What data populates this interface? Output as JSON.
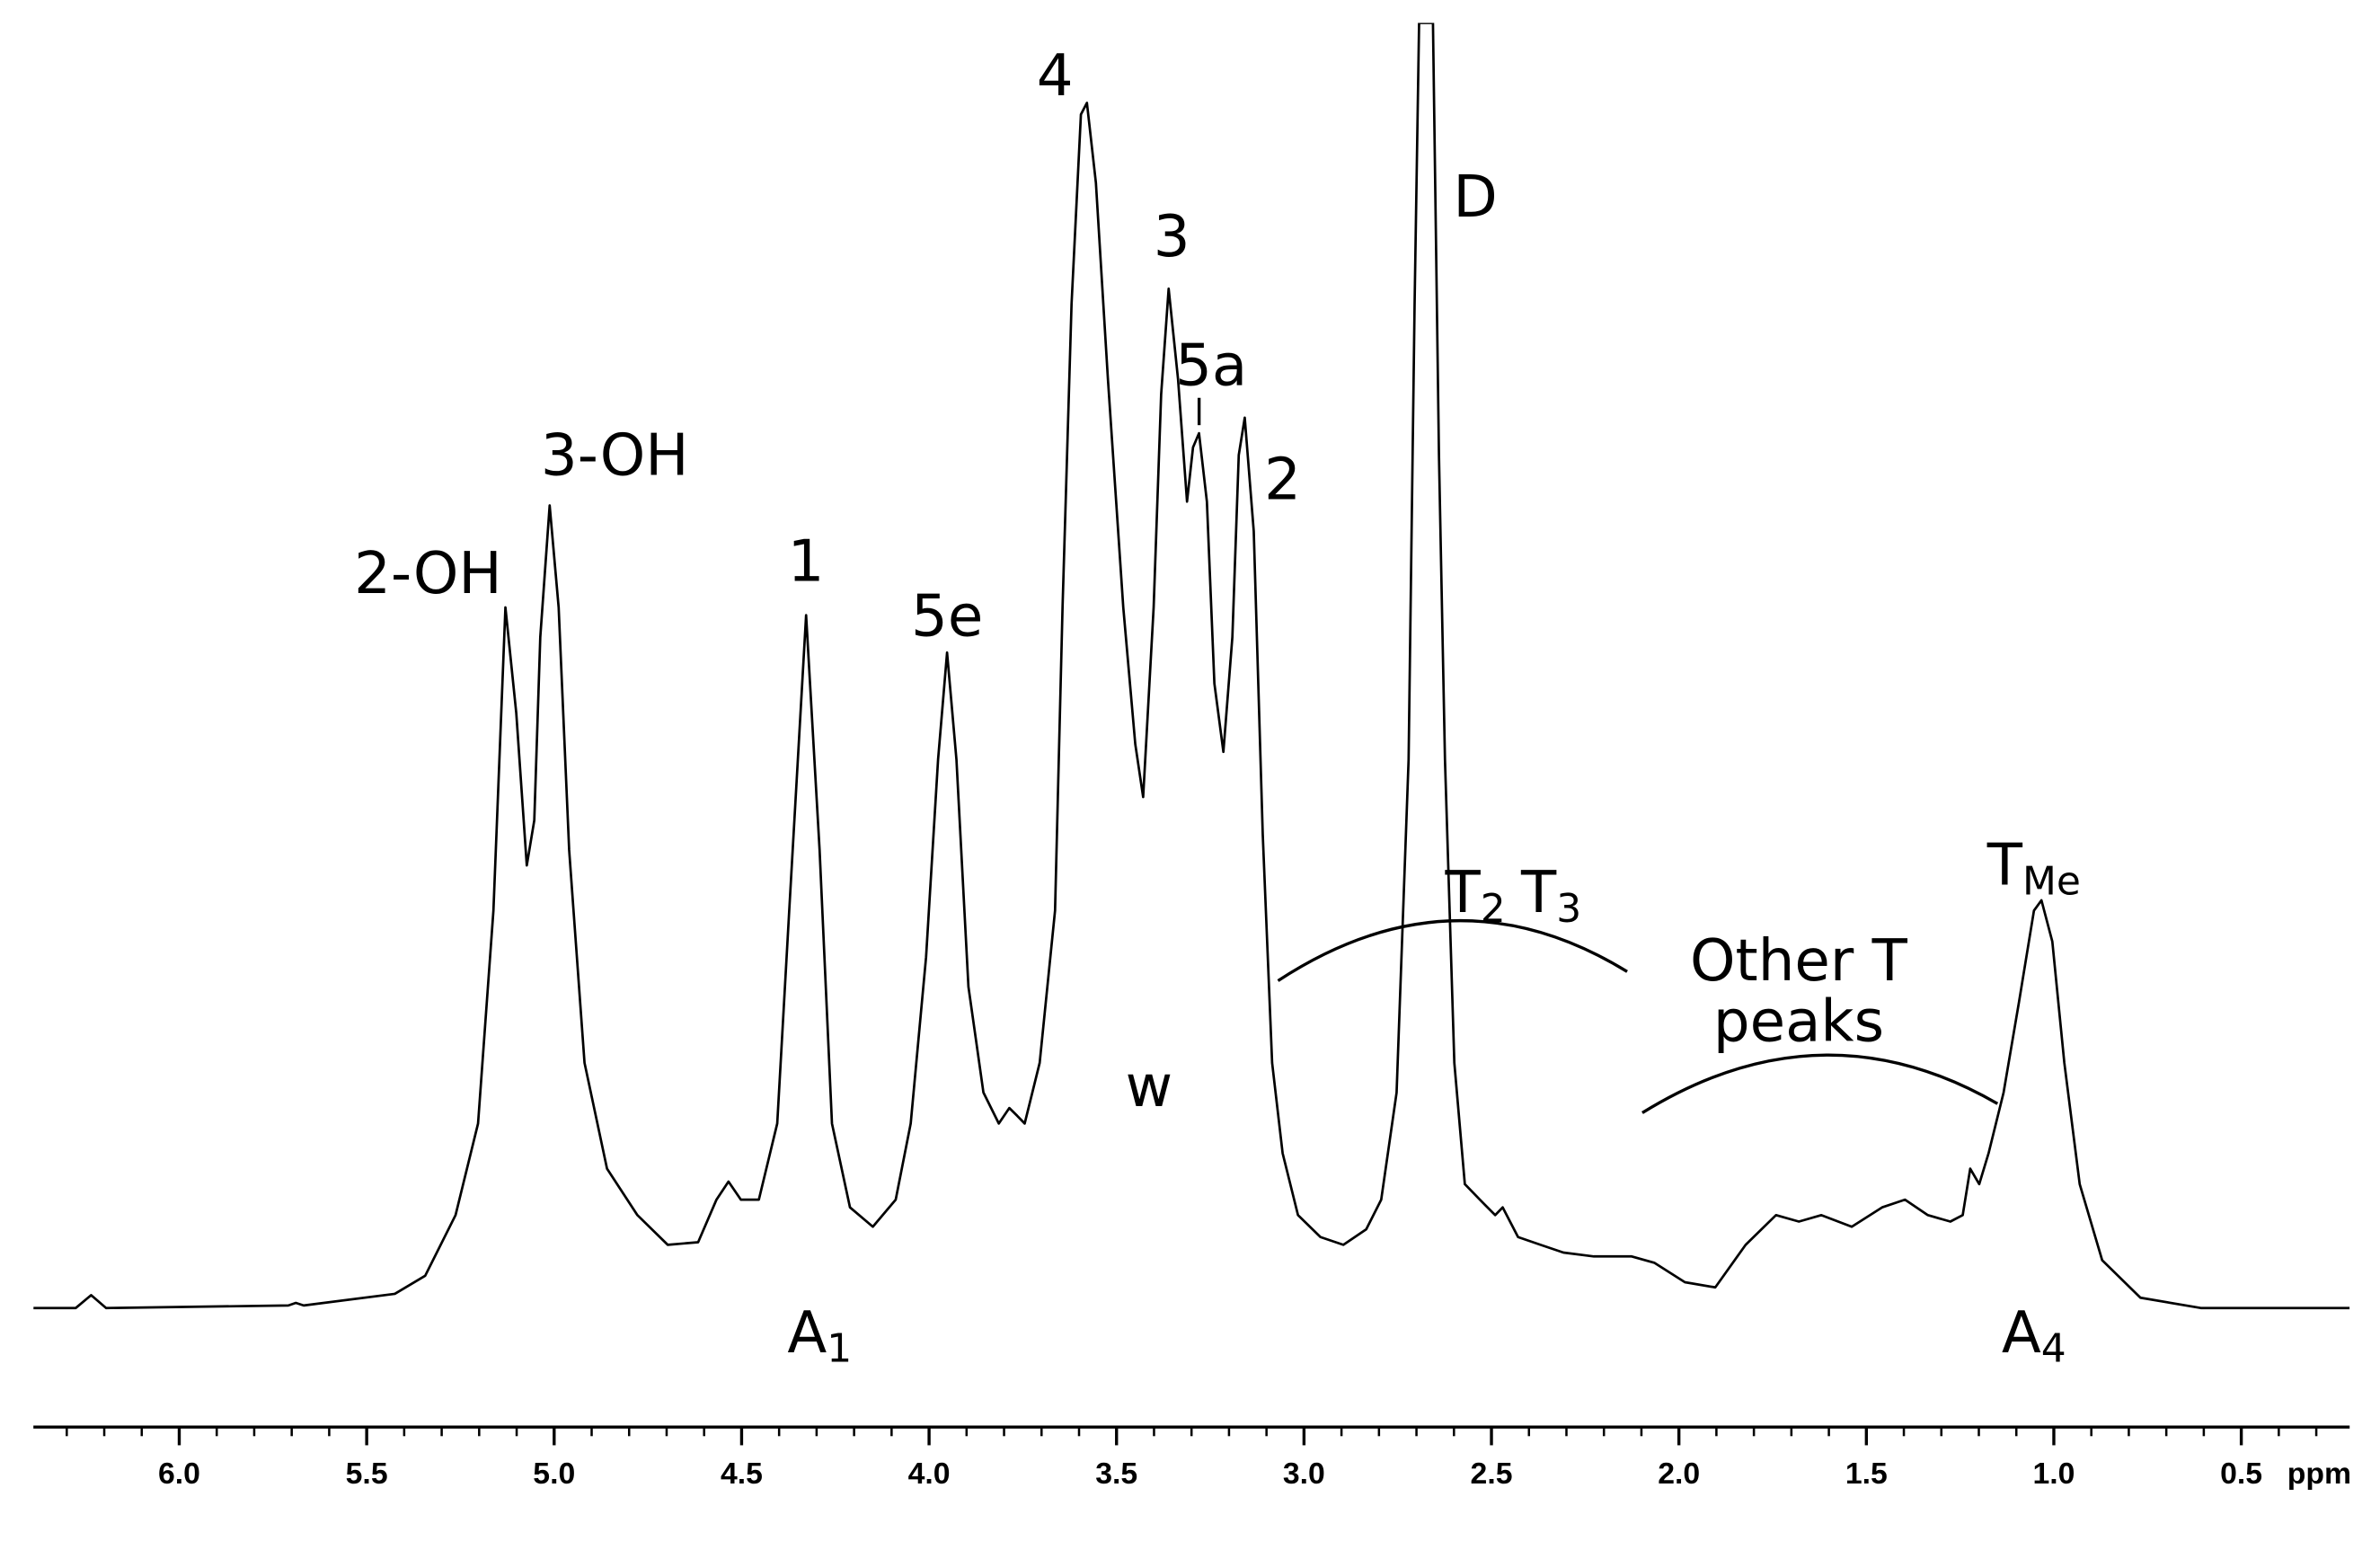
{
  "chart_data": {
    "type": "line",
    "x_label": "ppm",
    "xlim": [
      6.389,
      0.211
    ],
    "ylim": [
      0,
      100
    ],
    "color": "#000000",
    "xticks": [
      {
        "value": 6,
        "label": "6.0"
      },
      5.5,
      {
        "value": 5,
        "label": "5.0"
      },
      4.5,
      {
        "value": 4,
        "label": "4.0"
      },
      3.5,
      {
        "value": 3,
        "label": "3.0"
      },
      2.5,
      {
        "value": 2,
        "label": "2.0"
      },
      1.5,
      {
        "value": 1,
        "label": "1.0"
      },
      0.5
    ],
    "xminorticks": [
      6.3,
      6.2,
      6.1,
      6.0,
      5.9,
      5.8,
      5.7,
      5.6,
      5.5,
      5.4,
      5.3,
      5.2,
      5.1,
      5.0,
      4.9,
      4.8,
      4.7,
      4.6,
      4.5,
      4.4,
      4.3,
      4.2,
      4.1,
      4.0,
      3.9,
      3.8,
      3.7,
      3.6,
      3.5,
      3.4,
      3.3,
      3.2,
      3.1,
      3.0,
      2.9,
      2.8,
      2.7,
      2.6,
      2.5,
      2.4,
      2.3,
      2.2,
      2.1,
      2.0,
      1.9,
      1.8,
      1.7,
      1.6,
      1.5,
      1.4,
      1.3,
      1.2,
      1.1,
      1.0,
      0.9,
      0.8,
      0.7,
      0.6,
      0.5,
      0.4,
      0.3
    ],
    "x": [
      6.389,
      6.276,
      6.235,
      6.195,
      5.709,
      5.689,
      5.668,
      5.425,
      5.344,
      5.263,
      5.203,
      5.162,
      5.13,
      5.101,
      5.073,
      5.053,
      5.037,
      5.012,
      4.988,
      4.96,
      4.919,
      4.859,
      4.778,
      4.697,
      4.616,
      4.567,
      4.535,
      4.502,
      4.454,
      4.405,
      4.373,
      4.328,
      4.292,
      4.259,
      4.211,
      4.15,
      4.089,
      4.049,
      4.008,
      3.976,
      3.952,
      3.927,
      3.895,
      3.855,
      3.814,
      3.786,
      3.765,
      3.745,
      3.705,
      3.664,
      3.644,
      3.62,
      3.595,
      3.579,
      3.555,
      3.523,
      3.482,
      3.45,
      3.429,
      3.401,
      3.381,
      3.361,
      3.336,
      3.312,
      3.296,
      3.28,
      3.259,
      3.239,
      3.215,
      3.191,
      3.174,
      3.158,
      3.134,
      3.11,
      3.085,
      3.057,
      3.016,
      2.956,
      2.895,
      2.834,
      2.794,
      2.753,
      2.721,
      2.705,
      2.693,
      2.656,
      2.64,
      2.624,
      2.599,
      2.571,
      2.531,
      2.49,
      2.47,
      2.429,
      2.369,
      2.308,
      2.227,
      2.126,
      2.065,
      1.984,
      1.903,
      1.822,
      1.741,
      1.68,
      1.62,
      1.539,
      1.458,
      1.397,
      1.336,
      1.276,
      1.243,
      1.223,
      1.199,
      1.174,
      1.134,
      1.093,
      1.053,
      1.033,
      1.004,
      0.972,
      0.931,
      0.871,
      0.769,
      0.608,
      0.211
    ],
    "values": [
      0.4,
      0.4,
      1.4,
      0.4,
      0.6,
      0.8,
      0.6,
      1.5,
      2.9,
      7.6,
      14.7,
      31.2,
      54.7,
      46.5,
      34.7,
      38.2,
      52.4,
      62.6,
      54.7,
      35.9,
      19.4,
      11.2,
      7.6,
      5.3,
      5.5,
      8.8,
      10.2,
      8.8,
      8.8,
      14.7,
      31.2,
      54.1,
      35.9,
      14.7,
      8.2,
      6.7,
      8.8,
      14.7,
      27.6,
      42.9,
      51.2,
      42.9,
      25.3,
      17.1,
      14.7,
      15.9,
      15.3,
      14.7,
      19.4,
      31.2,
      54.7,
      78.2,
      92.9,
      93.8,
      87.6,
      72.4,
      54.7,
      44.1,
      40.0,
      54.7,
      71.2,
      79.4,
      72.4,
      62.9,
      67.1,
      68.2,
      62.9,
      48.8,
      43.5,
      52.4,
      66.5,
      69.4,
      60.6,
      37.1,
      19.4,
      12.4,
      7.6,
      5.9,
      5.3,
      6.5,
      8.8,
      17.1,
      42.9,
      78.2,
      100.0,
      100.0,
      66.5,
      42.9,
      19.4,
      10.0,
      8.8,
      7.6,
      8.2,
      5.9,
      5.3,
      4.7,
      4.4,
      4.4,
      3.9,
      2.4,
      2.0,
      5.3,
      7.6,
      7.1,
      7.6,
      6.7,
      8.2,
      8.8,
      7.6,
      7.1,
      7.6,
      11.2,
      10.0,
      12.4,
      17.1,
      24.1,
      31.2,
      32.0,
      28.8,
      19.4,
      10.0,
      4.1,
      1.2,
      0.4,
      0.4
    ],
    "annotations": [
      {
        "text": "2-OH"
      },
      {
        "text": "3-OH"
      },
      {
        "text": "1"
      },
      {
        "text": "5e"
      },
      {
        "text": "4"
      },
      {
        "text": "3"
      },
      {
        "text": "5a"
      },
      {
        "text": "2"
      },
      {
        "text": "D"
      },
      {
        "text": "w"
      },
      {
        "text": "Other T"
      },
      {
        "text": "peaks"
      },
      {
        "text": "A",
        "sub": "1"
      },
      {
        "text": "A",
        "sub": "4"
      },
      {
        "text": "T",
        "sub": "2"
      },
      {
        "text": "T",
        "sub": "3"
      },
      {
        "text": "T",
        "sub": "Me"
      }
    ]
  }
}
